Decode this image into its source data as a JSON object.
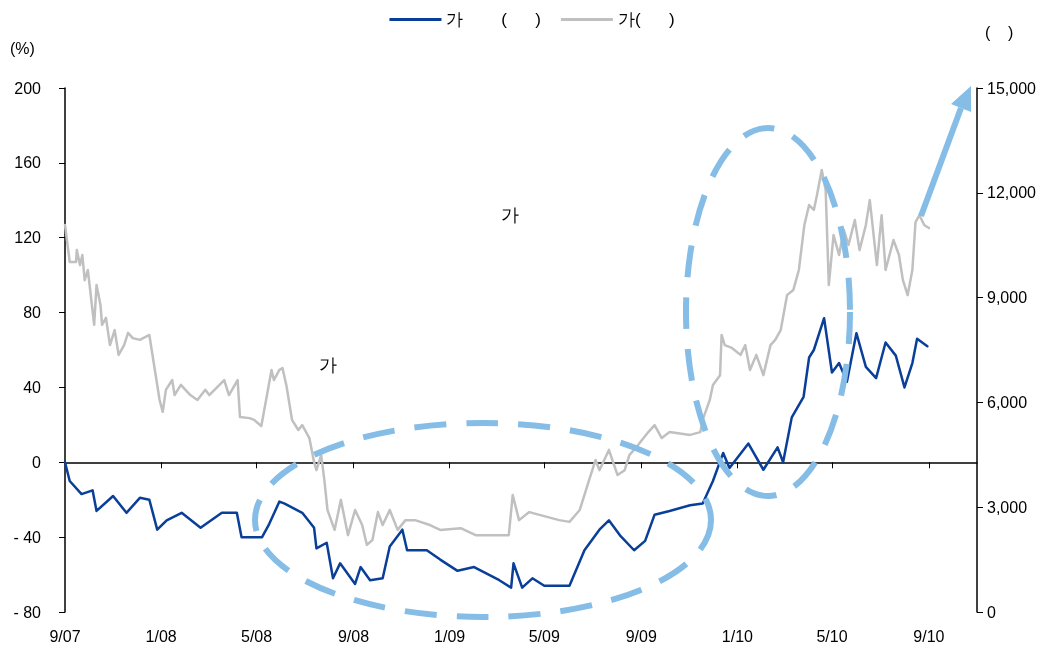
{
  "chart_data": {
    "type": "line",
    "ylabel": "(%)",
    "y2label": "(    )",
    "annotations": [
      "가",
      "가"
    ],
    "xlim": [
      "2007-09-01",
      "2010-11-01"
    ],
    "xticks": [
      {
        "value": "2007-09-01",
        "label": "9/07"
      },
      {
        "value": "2008-01-01",
        "label": "1/08"
      },
      {
        "value": "2008-05-01",
        "label": "5/08"
      },
      {
        "value": "2008-09-01",
        "label": "9/08"
      },
      {
        "value": "2009-01-01",
        "label": "1/09"
      },
      {
        "value": "2009-05-01",
        "label": "5/09"
      },
      {
        "value": "2009-09-01",
        "label": "9/09"
      },
      {
        "value": "2010-01-01",
        "label": "1/10"
      },
      {
        "value": "2010-05-01",
        "label": "5/10"
      },
      {
        "value": "2010-09-01",
        "label": "9/10"
      }
    ],
    "ylim": [
      -80,
      200
    ],
    "yticks": [
      {
        "value": -80,
        "label": "- 80"
      },
      {
        "value": -40,
        "label": "- 40"
      },
      0,
      40,
      80,
      120,
      160,
      200
    ],
    "y2lim": [
      0,
      15000
    ],
    "y2ticks": [
      0,
      {
        "value": 3000,
        "label": "3,000"
      },
      {
        "value": 6000,
        "label": "6,000"
      },
      {
        "value": 9000,
        "label": "9,000"
      },
      {
        "value": 12000,
        "label": "12,000"
      },
      {
        "value": 15000,
        "label": "15,000"
      }
    ],
    "legend": "top",
    "marker": "none",
    "line_style": "solid",
    "series": [
      {
        "name": "가        (      )",
        "color": "#0a3f99",
        "x": [
          "2007-09-01",
          "2007-09-07",
          "2007-09-22",
          "2007-10-06",
          "2007-10-11",
          "2007-11-01",
          "2007-11-18",
          "2007-12-05",
          "2007-12-17",
          "2007-12-27",
          "2008-01-08",
          "2008-01-27",
          "2008-02-20",
          "2008-03-18",
          "2008-04-06",
          "2008-04-12",
          "2008-05-08",
          "2008-05-17",
          "2008-05-30",
          "2008-06-05",
          "2008-06-28",
          "2008-07-13",
          "2008-07-16",
          "2008-07-29",
          "2008-08-06",
          "2008-08-15",
          "2008-09-03",
          "2008-09-10",
          "2008-09-22",
          "2008-10-08",
          "2008-10-17",
          "2008-11-02",
          "2008-11-08",
          "2008-12-03",
          "2008-12-20",
          "2009-01-11",
          "2009-02-01",
          "2009-03-05",
          "2009-03-20",
          "2009-03-23",
          "2009-04-03",
          "2009-04-16",
          "2009-05-01",
          "2009-06-02",
          "2009-06-08",
          "2009-06-21",
          "2009-07-10",
          "2009-07-22",
          "2009-08-05",
          "2009-08-23",
          "2009-09-06",
          "2009-09-18",
          "2009-10-07",
          "2009-11-02",
          "2009-11-18",
          "2009-12-01",
          "2009-12-14",
          "2009-12-22",
          "2010-01-15",
          "2010-02-03",
          "2010-02-21",
          "2010-02-28",
          "2010-03-11",
          "2010-03-26",
          "2010-04-02",
          "2010-04-08",
          "2010-04-21",
          "2010-05-01",
          "2010-05-10",
          "2010-05-20",
          "2010-06-01",
          "2010-06-13",
          "2010-06-26",
          "2010-07-08",
          "2010-07-21",
          "2010-08-01",
          "2010-08-11",
          "2010-08-17",
          "2010-08-30"
        ],
        "values": [
          0,
          -10,
          -17,
          -15,
          -26,
          -18,
          -27,
          -19,
          -20,
          -36,
          -31,
          -27,
          -35,
          -27,
          -27,
          -40,
          -40,
          -33,
          -21,
          -22,
          -27,
          -35,
          -46,
          -43,
          -62,
          -54,
          -65,
          -56,
          -63,
          -62,
          -45,
          -36,
          -47,
          -47,
          -52,
          -58,
          -56,
          -63,
          -67,
          -54,
          -67,
          -62,
          -66,
          -66,
          -60,
          -47,
          -36,
          -31,
          -39,
          -47,
          -42,
          -28,
          -26,
          -23,
          -22,
          -10,
          5,
          -3,
          10,
          -4,
          8,
          0,
          24,
          35,
          56,
          60,
          77,
          48,
          53,
          43,
          69,
          51,
          45,
          64,
          57,
          40,
          53,
          66,
          62
        ]
      },
      {
        "name": "가(      )",
        "color": "#c0c0c0",
        "axis": "y2",
        "x": [
          "2007-09-01",
          "2007-09-07",
          "2007-09-15",
          "2007-09-16",
          "2007-09-20",
          "2007-09-23",
          "2007-09-26",
          "2007-09-30",
          "2007-10-08",
          "2007-10-11",
          "2007-10-16",
          "2007-10-18",
          "2007-10-23",
          "2007-10-28",
          "2007-11-03",
          "2007-11-08",
          "2007-11-15",
          "2007-11-20",
          "2007-11-26",
          "2007-12-05",
          "2007-12-17",
          "2007-12-23",
          "2007-12-30",
          "2008-01-03",
          "2008-01-07",
          "2008-01-15",
          "2008-01-18",
          "2008-01-26",
          "2008-02-07",
          "2008-02-16",
          "2008-02-26",
          "2008-03-02",
          "2008-03-15",
          "2008-03-21",
          "2008-03-27",
          "2008-04-07",
          "2008-04-10",
          "2008-04-22",
          "2008-04-28",
          "2008-05-07",
          "2008-05-12",
          "2008-05-20",
          "2008-05-23",
          "2008-05-30",
          "2008-06-03",
          "2008-06-08",
          "2008-06-15",
          "2008-06-23",
          "2008-06-28",
          "2008-07-07",
          "2008-07-13",
          "2008-07-16",
          "2008-07-22",
          "2008-07-26",
          "2008-07-30",
          "2008-08-08",
          "2008-08-16",
          "2008-08-25",
          "2008-09-03",
          "2008-09-12",
          "2008-09-18",
          "2008-09-25",
          "2008-10-02",
          "2008-10-08",
          "2008-10-17",
          "2008-10-27",
          "2008-11-06",
          "2008-11-18",
          "2008-12-07",
          "2008-12-20",
          "2009-01-15",
          "2009-02-03",
          "2009-03-17",
          "2009-03-22",
          "2009-03-30",
          "2009-04-12",
          "2009-04-25",
          "2009-05-20",
          "2009-06-02",
          "2009-06-15",
          "2009-06-27",
          "2009-07-05",
          "2009-07-10",
          "2009-07-22",
          "2009-08-02",
          "2009-08-11",
          "2009-08-17",
          "2009-08-27",
          "2009-09-10",
          "2009-09-18",
          "2009-09-27",
          "2009-10-07",
          "2009-11-02",
          "2009-11-15",
          "2009-11-18",
          "2009-11-27",
          "2009-12-01",
          "2009-12-10",
          "2009-12-12",
          "2009-12-16",
          "2009-12-25",
          "2010-01-05",
          "2010-01-11",
          "2010-01-17",
          "2010-01-25",
          "2010-02-03",
          "2010-02-12",
          "2010-02-18",
          "2010-02-25",
          "2010-03-05",
          "2010-03-13",
          "2010-03-20",
          "2010-03-27",
          "2010-04-02",
          "2010-04-08",
          "2010-04-12",
          "2010-04-18",
          "2010-04-23",
          "2010-04-27",
          "2010-05-03",
          "2010-05-10",
          "2010-05-16",
          "2010-05-22",
          "2010-05-30",
          "2010-06-05",
          "2010-06-13",
          "2010-06-18",
          "2010-06-27",
          "2010-07-03",
          "2010-07-08",
          "2010-07-18",
          "2010-07-25",
          "2010-07-30",
          "2010-08-05",
          "2010-08-11",
          "2010-08-15",
          "2010-08-20",
          "2010-08-26",
          "2010-09-01"
        ],
        "values": [
          11080,
          10020,
          10020,
          10360,
          9930,
          10220,
          9500,
          9790,
          8220,
          9360,
          8790,
          8220,
          8420,
          7640,
          8070,
          7360,
          7640,
          7990,
          7840,
          7790,
          7930,
          7070,
          6070,
          5730,
          6360,
          6640,
          6210,
          6500,
          6210,
          6070,
          6360,
          6210,
          6500,
          6640,
          6210,
          6640,
          5580,
          5550,
          5500,
          5320,
          5930,
          6930,
          6640,
          6930,
          6980,
          6470,
          5500,
          5210,
          5350,
          4980,
          4290,
          4060,
          4490,
          3780,
          2920,
          2350,
          3210,
          2200,
          2920,
          2490,
          1920,
          2060,
          2860,
          2490,
          2920,
          2350,
          2630,
          2630,
          2490,
          2350,
          2400,
          2200,
          2200,
          3350,
          2630,
          2860,
          2780,
          2630,
          2580,
          2920,
          3780,
          4350,
          4060,
          4640,
          3920,
          4060,
          4490,
          4750,
          5150,
          5350,
          4980,
          5150,
          5070,
          5150,
          5500,
          6070,
          6500,
          6780,
          7930,
          7640,
          7560,
          7360,
          7640,
          6930,
          7360,
          6780,
          7640,
          7790,
          8070,
          9070,
          9220,
          9790,
          11080,
          11650,
          11510,
          11940,
          12650,
          12080,
          9360,
          10790,
          10220,
          10940,
          10510,
          11220,
          10360,
          11080,
          11790,
          9930,
          11360,
          9790,
          10650,
          10220,
          9500,
          9070,
          9790,
          11160,
          11360,
          11080,
          10990
        ]
      }
    ]
  }
}
